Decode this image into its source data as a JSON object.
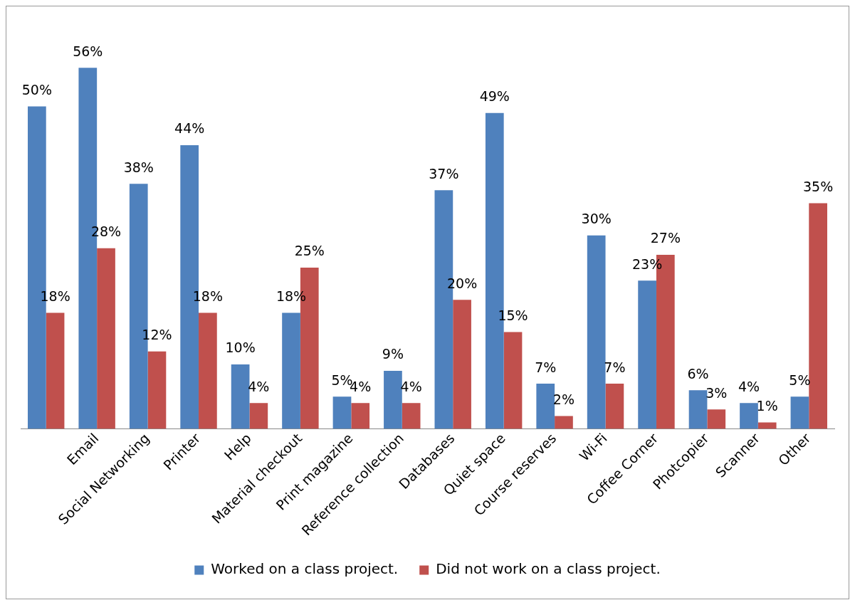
{
  "chart_data": {
    "type": "bar",
    "categories": [
      null,
      "Email",
      "Social Networking",
      "Printer",
      "Help",
      "Material checkout",
      "Print magazine",
      "Reference collection",
      "Databases",
      "Quiet space",
      "Course reserves",
      "Wi-Fi",
      "Coffee Corner",
      "Photcopier",
      "Scanner",
      "Other"
    ],
    "series": [
      {
        "name": "Worked on a class project.",
        "color": "#4f81bd",
        "values": [
          50,
          56,
          38,
          44,
          10,
          18,
          5,
          9,
          37,
          49,
          7,
          30,
          23,
          6,
          4,
          5
        ],
        "value_labels": [
          "50%",
          "56%",
          "38%",
          "44%",
          "10%",
          "18%",
          "5%",
          "9%",
          "37%",
          "49%",
          "7%",
          "30%",
          "23%",
          "6%",
          "4%",
          "5%"
        ]
      },
      {
        "name": "Did not work on a class project.",
        "color": "#c0504d",
        "values": [
          18,
          28,
          12,
          18,
          4,
          25,
          4,
          4,
          20,
          15,
          2,
          7,
          27,
          3,
          1,
          35
        ],
        "value_labels": [
          "18%",
          "28%",
          "12%",
          "18%",
          "4%",
          "25%",
          "4%",
          "4%",
          "20%",
          "15%",
          "2%",
          "7%",
          "27%",
          "3%",
          "1%",
          "35%"
        ]
      }
    ],
    "legend": "bottom",
    "grid": false
  }
}
